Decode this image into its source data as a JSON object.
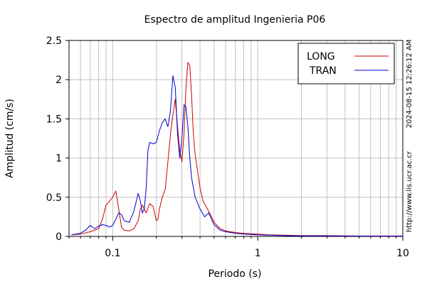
{
  "chart_data": {
    "type": "line",
    "title": "Espectro de amplitud Ingenieria P06",
    "xlabel": "Periodo (s)",
    "ylabel": "Amplitud (cm/s)",
    "x_scale": "log",
    "xlim": [
      0.05,
      10
    ],
    "ylim": [
      0,
      2.5
    ],
    "x_ticks": [
      0.1,
      1,
      10
    ],
    "x_tick_labels": [
      "0.1",
      "1",
      "10"
    ],
    "y_ticks": [
      0,
      0.5,
      1,
      1.5,
      2,
      2.5
    ],
    "y_tick_labels": [
      "0",
      "0.5",
      "1",
      "1.5",
      "2",
      "2.5"
    ],
    "grid": true,
    "legend_position": "top-right",
    "series": [
      {
        "name": "LONG",
        "color": "#cc0000",
        "x": [
          0.052,
          0.06,
          0.07,
          0.08,
          0.085,
          0.09,
          0.095,
          0.1,
          0.105,
          0.11,
          0.115,
          0.12,
          0.13,
          0.14,
          0.15,
          0.155,
          0.16,
          0.17,
          0.18,
          0.19,
          0.2,
          0.205,
          0.21,
          0.22,
          0.23,
          0.24,
          0.25,
          0.26,
          0.27,
          0.28,
          0.29,
          0.3,
          0.31,
          0.32,
          0.33,
          0.34,
          0.35,
          0.36,
          0.37,
          0.38,
          0.4,
          0.42,
          0.45,
          0.48,
          0.5,
          0.55,
          0.6,
          0.7,
          0.8,
          1.0,
          1.2,
          1.5,
          2.0,
          3.0,
          5.0,
          7.0,
          10.0
        ],
        "y": [
          0.02,
          0.03,
          0.06,
          0.1,
          0.22,
          0.4,
          0.45,
          0.5,
          0.58,
          0.35,
          0.12,
          0.08,
          0.07,
          0.1,
          0.2,
          0.35,
          0.4,
          0.3,
          0.42,
          0.38,
          0.2,
          0.22,
          0.35,
          0.5,
          0.6,
          0.95,
          1.3,
          1.55,
          1.75,
          1.4,
          1.1,
          0.95,
          1.3,
          1.9,
          2.22,
          2.18,
          1.8,
          1.3,
          1.05,
          0.9,
          0.62,
          0.45,
          0.35,
          0.25,
          0.18,
          0.1,
          0.07,
          0.05,
          0.04,
          0.03,
          0.02,
          0.015,
          0.01,
          0.01,
          0.005,
          0.005,
          0.005
        ]
      },
      {
        "name": "TRAN",
        "color": "#0000cc",
        "x": [
          0.052,
          0.06,
          0.065,
          0.07,
          0.075,
          0.08,
          0.085,
          0.09,
          0.095,
          0.1,
          0.105,
          0.11,
          0.115,
          0.12,
          0.13,
          0.14,
          0.15,
          0.155,
          0.16,
          0.165,
          0.17,
          0.175,
          0.18,
          0.19,
          0.2,
          0.21,
          0.22,
          0.23,
          0.24,
          0.25,
          0.26,
          0.27,
          0.28,
          0.29,
          0.3,
          0.31,
          0.32,
          0.33,
          0.34,
          0.35,
          0.37,
          0.4,
          0.43,
          0.46,
          0.48,
          0.5,
          0.55,
          0.6,
          0.7,
          0.8,
          1.0,
          1.2,
          1.5,
          2.0,
          3.0,
          5.0,
          7.0,
          10.0
        ],
        "y": [
          0.02,
          0.04,
          0.08,
          0.14,
          0.1,
          0.13,
          0.15,
          0.14,
          0.12,
          0.14,
          0.22,
          0.3,
          0.28,
          0.2,
          0.18,
          0.32,
          0.55,
          0.45,
          0.3,
          0.35,
          0.6,
          1.1,
          1.2,
          1.18,
          1.2,
          1.35,
          1.45,
          1.5,
          1.4,
          1.6,
          2.05,
          1.9,
          1.3,
          1.0,
          1.25,
          1.68,
          1.65,
          1.4,
          1.0,
          0.75,
          0.5,
          0.35,
          0.25,
          0.3,
          0.22,
          0.15,
          0.08,
          0.06,
          0.04,
          0.03,
          0.02,
          0.015,
          0.01,
          0.005,
          0.005,
          0.004,
          0.003,
          0.003
        ]
      }
    ]
  },
  "side_text": {
    "timestamp": "2024-08-15 12:26:12 AM",
    "url": "http://www.lis.ucr.ac.cr"
  }
}
